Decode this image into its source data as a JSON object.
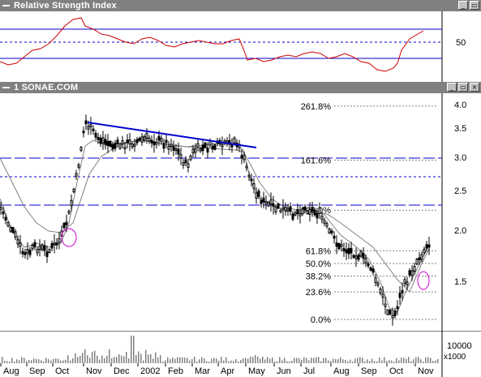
{
  "rsi_window": {
    "title": "Relative Strength Index",
    "axis_label": "50",
    "colors": {
      "line": "#cc0000",
      "band": "#0000cc"
    }
  },
  "price_window": {
    "title": "1 SONAE.COM",
    "y_axis_labels": [
      "4.0",
      "3.5",
      "3.0",
      "2.5",
      "2.0",
      "1.5"
    ],
    "fib_levels": [
      {
        "label": "261.8%",
        "value": 3.95
      },
      {
        "label": "161.6%",
        "value": 2.97
      },
      {
        "label": "100.0%",
        "value": 2.28
      },
      {
        "label": "61.8%",
        "value": 1.84
      },
      {
        "label": "50.0%",
        "value": 1.72
      },
      {
        "label": "38.2%",
        "value": 1.61
      },
      {
        "label": "23.6%",
        "value": 1.48
      },
      {
        "label": "0.0%",
        "value": 1.28
      }
    ],
    "colors": {
      "candle": "#000000",
      "trendline": "#0000cc",
      "ma": "#808080",
      "circle": "#cc00cc"
    }
  },
  "volume_window": {
    "axis_label": "10000",
    "scale_label": "x1000"
  },
  "x_axis_labels": [
    "Aug",
    "Sep",
    "Oct",
    "Nov",
    "Dec",
    "2002",
    "Feb",
    "Mar",
    "Apr",
    "May",
    "Jun",
    "Jul",
    "Aug",
    "Sep",
    "Oct",
    "Nov"
  ],
  "window_buttons": {
    "minimize": "_",
    "restore": "▭",
    "close": "×"
  }
}
